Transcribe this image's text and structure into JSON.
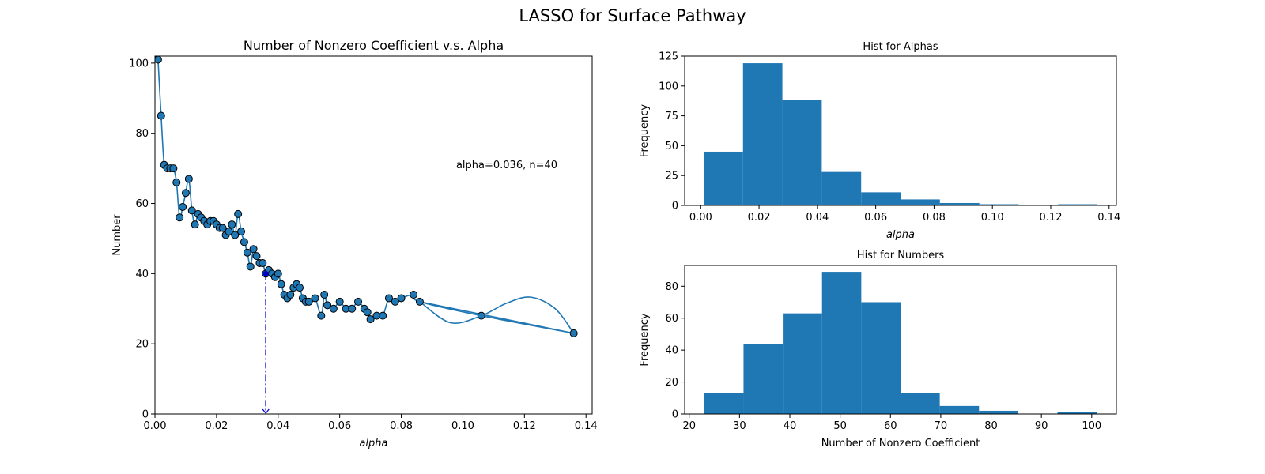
{
  "figure": {
    "suptitle": "LASSO for Surface Pathway"
  },
  "colors": {
    "series": "#1f77b4",
    "marker_edge": "#000000",
    "guide": "#0000cc"
  },
  "chart_data": [
    {
      "type": "scatter",
      "title": "Number of Nonzero Coefficient v.s. Alpha",
      "xlabel": "alpha",
      "ylabel": "Number",
      "xlim": [
        0,
        0.142
      ],
      "ylim": [
        0,
        102
      ],
      "xticks": [
        0,
        0.02,
        0.04,
        0.06,
        0.08,
        0.1,
        0.12,
        0.14
      ],
      "xtick_labels": [
        "0.00",
        "0.02",
        "0.04",
        "0.06",
        "0.08",
        "0.10",
        "0.12",
        "0.14"
      ],
      "yticks": [
        0,
        20,
        40,
        60,
        80,
        100
      ],
      "ytick_labels": [
        "0",
        "20",
        "40",
        "60",
        "80",
        "100"
      ],
      "annotation": "alpha=0.036, n=40",
      "selected_point": {
        "x": 0.036,
        "y": 40
      },
      "points": {
        "x": [
          0.001,
          0.002,
          0.003,
          0.004,
          0.005,
          0.006,
          0.007,
          0.008,
          0.009,
          0.01,
          0.011,
          0.012,
          0.013,
          0.014,
          0.015,
          0.016,
          0.017,
          0.018,
          0.019,
          0.02,
          0.021,
          0.022,
          0.023,
          0.024,
          0.025,
          0.026,
          0.027,
          0.028,
          0.029,
          0.03,
          0.031,
          0.032,
          0.033,
          0.034,
          0.035,
          0.036,
          0.037,
          0.038,
          0.039,
          0.04,
          0.041,
          0.042,
          0.043,
          0.044,
          0.045,
          0.046,
          0.047,
          0.048,
          0.049,
          0.05,
          0.052,
          0.054,
          0.055,
          0.056,
          0.058,
          0.06,
          0.062,
          0.064,
          0.066,
          0.068,
          0.069,
          0.07,
          0.072,
          0.074,
          0.076,
          0.078,
          0.08,
          0.084,
          0.086,
          0.106,
          0.136
        ],
        "y": [
          101,
          85,
          71,
          70,
          70,
          70,
          66,
          56,
          59,
          63,
          67,
          58,
          54,
          57,
          56,
          55,
          54,
          55,
          55,
          54,
          53,
          53,
          51,
          52,
          54,
          51,
          57,
          52,
          49,
          46,
          42,
          47,
          45,
          43,
          43,
          40,
          41,
          40,
          39,
          40,
          37,
          34,
          33,
          34,
          36,
          37,
          36,
          33,
          32,
          32,
          33,
          28,
          34,
          31,
          30,
          32,
          30,
          30,
          32,
          30,
          29,
          27,
          28,
          28,
          33,
          32,
          33,
          34,
          32,
          28,
          23
        ]
      },
      "curve": {
        "x": [
          0.086,
          0.096,
          0.106,
          0.114,
          0.122,
          0.13,
          0.136
        ],
        "y": [
          32,
          26,
          28,
          31.5,
          33.3,
          30,
          23
        ]
      }
    },
    {
      "type": "bar",
      "title": "Hist for Alphas",
      "xlabel": "alpha",
      "ylabel": "Frequency",
      "xlim": [
        -0.0055,
        0.1425
      ],
      "ylim": [
        0,
        125
      ],
      "bin_edges": [
        0.001,
        0.0145,
        0.028,
        0.0415,
        0.055,
        0.0685,
        0.082,
        0.0955,
        0.109,
        0.1225,
        0.136
      ],
      "values": [
        45,
        119,
        88,
        28,
        11,
        5,
        2,
        1,
        0,
        1
      ],
      "xticks": [
        0,
        0.02,
        0.04,
        0.06,
        0.08,
        0.1,
        0.12,
        0.14
      ],
      "xtick_labels": [
        "0.00",
        "0.02",
        "0.04",
        "0.06",
        "0.08",
        "0.10",
        "0.12",
        "0.14"
      ],
      "yticks": [
        0,
        25,
        50,
        75,
        100,
        125
      ],
      "ytick_labels": [
        "0",
        "25",
        "50",
        "75",
        "100",
        "125"
      ]
    },
    {
      "type": "bar",
      "title": "Hist for Numbers",
      "xlabel": "Number of Nonzero Coefficient",
      "ylabel": "Frequency",
      "xlim": [
        19.1,
        104.9
      ],
      "ylim": [
        0,
        93
      ],
      "bin_edges": [
        23,
        30.8,
        38.6,
        46.4,
        54.2,
        62,
        69.8,
        77.6,
        85.4,
        93.2,
        101
      ],
      "values": [
        13,
        44,
        63,
        89,
        70,
        13,
        5,
        2,
        0,
        1
      ],
      "xticks": [
        20,
        30,
        40,
        50,
        60,
        70,
        80,
        90,
        100
      ],
      "xtick_labels": [
        "20",
        "30",
        "40",
        "50",
        "60",
        "70",
        "80",
        "90",
        "100"
      ],
      "yticks": [
        0,
        20,
        40,
        60,
        80
      ],
      "ytick_labels": [
        "0",
        "20",
        "40",
        "60",
        "80"
      ]
    }
  ]
}
